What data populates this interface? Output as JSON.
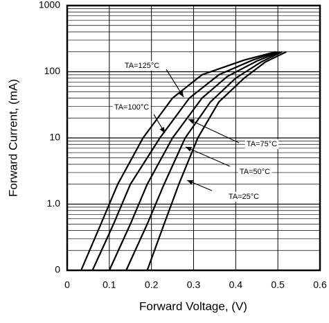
{
  "chart_data": {
    "type": "line",
    "xlabel": "Forward Voltage, (V)",
    "ylabel": "Forward Current, (mA)",
    "xlim": [
      0,
      0.6
    ],
    "xticks": [
      0,
      0.1,
      0.2,
      0.3,
      0.4,
      0.5,
      0.6
    ],
    "ylim": [
      0.1,
      1000
    ],
    "log_y": true,
    "grid": true,
    "yticks": [
      {
        "value": 0.1,
        "label": "0"
      },
      {
        "value": 1,
        "label": "1.0"
      },
      10,
      100,
      1000
    ],
    "series": [
      {
        "name": "TA=125°C",
        "color": "#000000",
        "x": [
          0.033,
          0.08,
          0.12,
          0.18,
          0.25,
          0.32,
          0.42,
          0.495
        ],
        "values": [
          0.1,
          0.5,
          2,
          10,
          40,
          90,
          150,
          200
        ]
      },
      {
        "name": "TA=100°C",
        "color": "#000000",
        "x": [
          0.06,
          0.11,
          0.15,
          0.22,
          0.29,
          0.36,
          0.44,
          0.5
        ],
        "values": [
          0.1,
          0.5,
          2,
          10,
          40,
          90,
          150,
          200
        ]
      },
      {
        "name": "TA=75°C",
        "color": "#000000",
        "x": [
          0.1,
          0.15,
          0.19,
          0.25,
          0.32,
          0.38,
          0.45,
          0.505
        ],
        "values": [
          0.1,
          0.5,
          2,
          10,
          40,
          85,
          145,
          200
        ]
      },
      {
        "name": "TA=50°C",
        "color": "#000000",
        "x": [
          0.14,
          0.19,
          0.23,
          0.28,
          0.34,
          0.4,
          0.46,
          0.51
        ],
        "values": [
          0.1,
          0.5,
          2,
          10,
          35,
          80,
          140,
          200
        ]
      },
      {
        "name": "TA=25°C",
        "color": "#000000",
        "x": [
          0.19,
          0.23,
          0.265,
          0.31,
          0.36,
          0.42,
          0.47,
          0.52
        ],
        "values": [
          0.1,
          0.5,
          2,
          10,
          35,
          80,
          140,
          200
        ]
      }
    ]
  }
}
